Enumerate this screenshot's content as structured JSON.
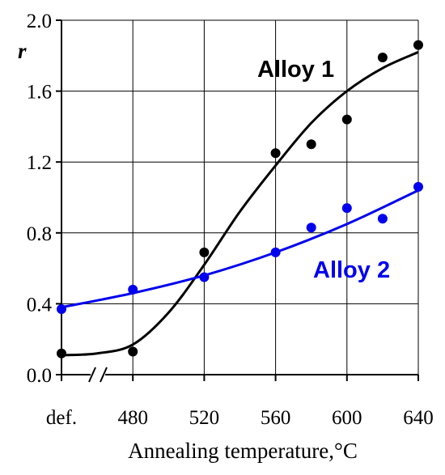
{
  "chart_data": {
    "type": "scatter",
    "xlabel": "Annealing temperature,°C",
    "ylabel": "r",
    "x_tick_labels": [
      "def.",
      "480",
      "520",
      "560",
      "600",
      "640"
    ],
    "x_tick_values": [
      440,
      480,
      520,
      560,
      600,
      640
    ],
    "xlim": [
      440,
      640
    ],
    "ylim": [
      0,
      2.0
    ],
    "y_ticks": [
      0.0,
      0.4,
      0.8,
      1.2,
      1.6,
      2.0
    ],
    "y_tick_labels": [
      "0.0",
      "0.4",
      "0.8",
      "1.2",
      "1.6",
      "2.0"
    ],
    "axis_break": "between def. and 480",
    "grid": true,
    "series": [
      {
        "name": "Alloy 1",
        "color": "#000000",
        "x": [
          440,
          480,
          520,
          560,
          580,
          600,
          620,
          640
        ],
        "y": [
          0.12,
          0.13,
          0.69,
          1.25,
          1.3,
          1.44,
          1.79,
          1.86
        ],
        "fit_x": [
          440,
          460,
          480,
          500,
          520,
          540,
          560,
          580,
          600,
          620,
          640
        ],
        "fit_y": [
          0.11,
          0.12,
          0.17,
          0.35,
          0.62,
          0.92,
          1.18,
          1.42,
          1.6,
          1.73,
          1.82
        ]
      },
      {
        "name": "Alloy 2",
        "color": "#0000ee",
        "x": [
          440,
          480,
          520,
          560,
          580,
          600,
          620,
          640
        ],
        "y": [
          0.37,
          0.48,
          0.55,
          0.69,
          0.83,
          0.94,
          0.88,
          1.06
        ],
        "fit_x": [
          440,
          480,
          520,
          560,
          600,
          640
        ],
        "fit_y": [
          0.38,
          0.46,
          0.56,
          0.69,
          0.85,
          1.04
        ]
      }
    ]
  }
}
